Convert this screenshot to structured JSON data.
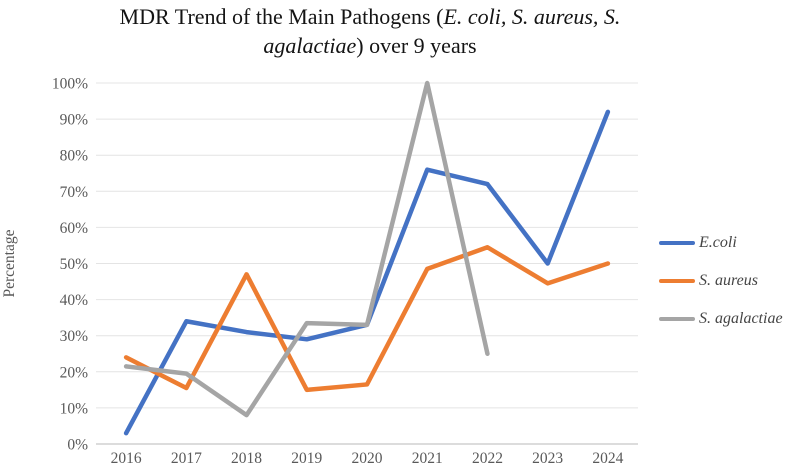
{
  "title": {
    "line1_normal": "MDR Trend of the Main Pathogens (",
    "line1_italic": "E. coli, S. aureus, S.",
    "line2_italic": "agalactiae",
    "line2_normal": ") over 9 years"
  },
  "chart_data": {
    "type": "line",
    "title": "MDR Trend of the Main Pathogens (E. coli, S. aureus, S. agalactiae) over 9 years",
    "xlabel": "",
    "ylabel": "Percentage",
    "ylim": [
      0,
      100
    ],
    "grid": true,
    "legend_position": "right",
    "grid_color": "#e4e4e4",
    "axis_color": "#c6c6c6",
    "tick_label_color": "#595959",
    "categories": [
      "2016",
      "2017",
      "2018",
      "2019",
      "2020",
      "2021",
      "2022",
      "2023",
      "2024"
    ],
    "ytick_values": [
      0,
      10,
      20,
      30,
      40,
      50,
      60,
      70,
      80,
      90,
      100
    ],
    "ytick_labels": [
      "0%",
      "10%",
      "20%",
      "30%",
      "40%",
      "50%",
      "60%",
      "70%",
      "80%",
      "90%",
      "100%"
    ],
    "series": [
      {
        "name": "E.coli",
        "color": "#4472C4",
        "values": [
          3,
          34,
          31,
          29,
          33,
          76,
          72,
          50,
          92
        ]
      },
      {
        "name": "S. aureus",
        "color": "#ED7D31",
        "values": [
          24,
          15.5,
          47,
          15,
          16.5,
          48.5,
          54.5,
          44.5,
          50
        ]
      },
      {
        "name": "S. agalactiae",
        "color": "#A5A5A5",
        "values": [
          21.5,
          19.5,
          8,
          33.5,
          33,
          100,
          25,
          null,
          null
        ]
      }
    ]
  }
}
